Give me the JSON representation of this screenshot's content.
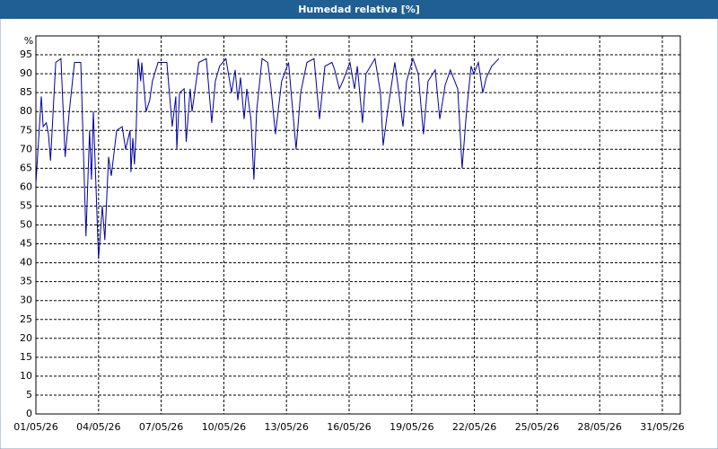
{
  "chart_data": {
    "type": "line",
    "title": "Humedad relativa [%]",
    "y_label": "%",
    "x": [
      1.0,
      1.26,
      1.35,
      1.5,
      1.6,
      1.7,
      1.95,
      2.2,
      2.4,
      2.6,
      2.85,
      3.15,
      3.4,
      3.57,
      3.66,
      3.75,
      4.0,
      4.18,
      4.3,
      4.48,
      4.61,
      4.87,
      5.13,
      5.3,
      5.51,
      5.55,
      5.64,
      5.72,
      5.8,
      5.9,
      6.02,
      6.07,
      6.28,
      6.45,
      6.58,
      6.85,
      7.27,
      7.53,
      7.7,
      7.75,
      7.88,
      8.1,
      8.2,
      8.39,
      8.48,
      8.8,
      9.16,
      9.42,
      9.59,
      9.8,
      10.1,
      10.37,
      10.54,
      10.67,
      10.8,
      10.97,
      11.1,
      11.3,
      11.44,
      11.57,
      11.83,
      12.1,
      12.26,
      12.47,
      12.77,
      13.1,
      13.46,
      13.68,
      13.98,
      14.32,
      14.58,
      14.84,
      15.18,
      15.31,
      15.53,
      15.7,
      16.04,
      16.26,
      16.39,
      16.64,
      16.81,
      17.24,
      17.5,
      17.63,
      17.84,
      18.19,
      18.36,
      18.58,
      18.75,
      19.05,
      19.31,
      19.56,
      19.78,
      20.12,
      20.34,
      20.6,
      20.85,
      21.2,
      21.41,
      21.62,
      21.84,
      21.97,
      22.19,
      22.4,
      22.57,
      22.83,
      23.17
    ],
    "series": [
      {
        "name": "Humedad relativa",
        "color": "#0000a0",
        "values": [
          61,
          84,
          76,
          77,
          74,
          67,
          93,
          94,
          68,
          80,
          93,
          93,
          47,
          75,
          62,
          80,
          41,
          55,
          46,
          68,
          63,
          75,
          76,
          70,
          75,
          64,
          73,
          66,
          75,
          94,
          88,
          93,
          80,
          83,
          88,
          93,
          93,
          76,
          84,
          70,
          85,
          86,
          72,
          86,
          80,
          93,
          94,
          77,
          88,
          92,
          94,
          85,
          91,
          83,
          89,
          78,
          86,
          78,
          62,
          80,
          94,
          93,
          86,
          74,
          88,
          93,
          70,
          85,
          93,
          94,
          78,
          92,
          93,
          91,
          86,
          88,
          93,
          86,
          92,
          77,
          90,
          94,
          85,
          71,
          80,
          93,
          86,
          76,
          88,
          94,
          90,
          74,
          88,
          91,
          78,
          87,
          91,
          86,
          65,
          80,
          92,
          90,
          93,
          85,
          89,
          92,
          94
        ]
      }
    ],
    "xlim": [
      1,
      31.86
    ],
    "xticks": [
      {
        "value": 1,
        "label": "01/05/26"
      },
      {
        "value": 4,
        "label": "04/05/26"
      },
      {
        "value": 7,
        "label": "07/05/26"
      },
      {
        "value": 10,
        "label": "10/05/26"
      },
      {
        "value": 13,
        "label": "13/05/26"
      },
      {
        "value": 16,
        "label": "16/05/26"
      },
      {
        "value": 19,
        "label": "19/05/26"
      },
      {
        "value": 22,
        "label": "22/05/26"
      },
      {
        "value": 25,
        "label": "25/05/26"
      },
      {
        "value": 28,
        "label": "28/05/26"
      },
      {
        "value": 31,
        "label": "31/05/26"
      }
    ],
    "ylim": [
      0,
      100
    ],
    "yticks": [
      0,
      5,
      10,
      15,
      20,
      25,
      30,
      35,
      40,
      45,
      50,
      55,
      60,
      65,
      70,
      75,
      80,
      85,
      90,
      95
    ],
    "grid": true
  }
}
